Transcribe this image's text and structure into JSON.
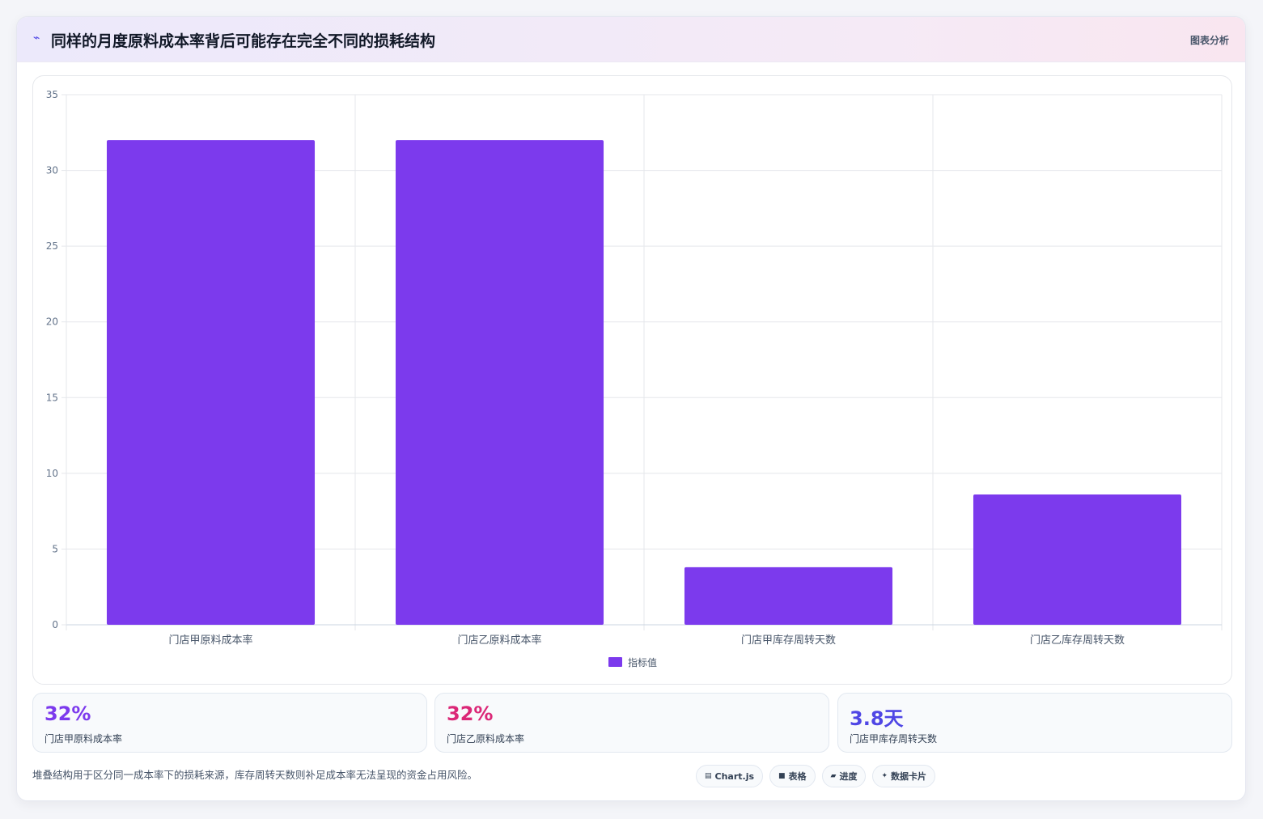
{
  "header": {
    "icon": "chart-line-icon",
    "title": "同样的月度原料成本率背后可能存在完全不同的损耗结构",
    "tag": "图表分析"
  },
  "chart_data": {
    "type": "bar",
    "categories": [
      "门店甲原料成本率",
      "门店乙原料成本率",
      "门店甲库存周转天数",
      "门店乙库存周转天数"
    ],
    "series": [
      {
        "name": "指标值",
        "values": [
          32,
          32,
          3.8,
          8.6
        ],
        "color": "#7c3aed"
      }
    ],
    "ylim": [
      0,
      35
    ],
    "yticks": [
      0,
      5,
      10,
      15,
      20,
      25,
      30,
      35
    ],
    "grid": true,
    "legend": "bottom"
  },
  "stats": [
    {
      "value": "32%",
      "label": "门店甲原料成本率",
      "color": "#7c3aed"
    },
    {
      "value": "32%",
      "label": "门店乙原料成本率",
      "color": "#db2777"
    },
    {
      "value": "3.8天",
      "label": "门店甲库存周转天数",
      "color": "#4f46e5"
    }
  ],
  "footnote": "堆叠结构用于区分同一成本率下的损耗来源，库存周转天数则补足成本率无法呈现的资金占用风险。",
  "pills": [
    {
      "icon": "chart-icon",
      "glyph": "▤",
      "label": "Chart.js"
    },
    {
      "icon": "table-icon",
      "glyph": "■",
      "label": "表格"
    },
    {
      "icon": "progress-icon",
      "glyph": "▰",
      "label": "进度"
    },
    {
      "icon": "sparkle-icon",
      "glyph": "✦",
      "label": "数据卡片"
    }
  ]
}
